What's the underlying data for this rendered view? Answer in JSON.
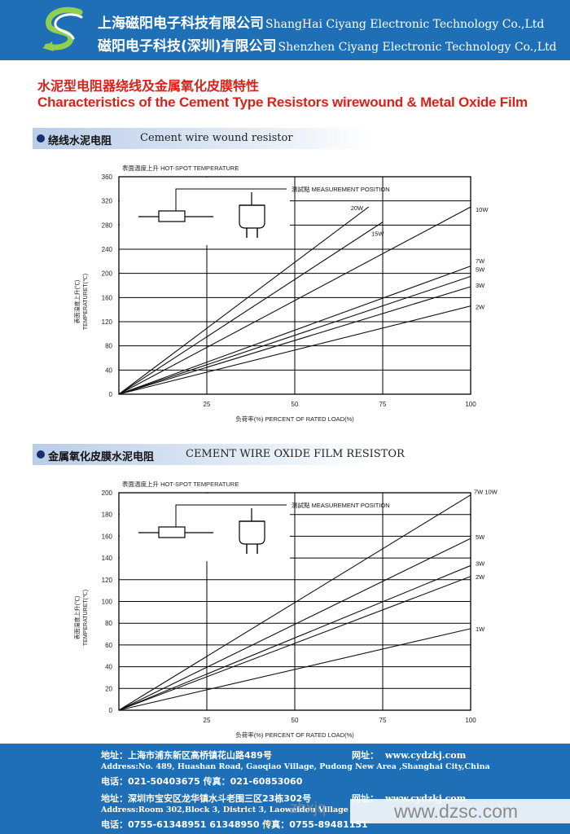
{
  "header": {
    "company_cn_1": "上海磁阳电子科技有限公司",
    "company_en_1": "ShangHai Ciyang Electronic Technology Co.,Ltd",
    "company_cn_2": "磁阳电子科技(深圳)有限公司",
    "company_en_2": "Shenzhen Ciyang Electronic Technology Co.,Ltd",
    "brand_color": "#1f6fb6"
  },
  "title": {
    "cn": "水泥型电阻器绕线及金属氧化皮膜特性",
    "en": "Characteristics of the Cement Type Resistors wirewound & Metal Oxide Film",
    "color": "#d8221a"
  },
  "sections": [
    {
      "cn": "绕线水泥电阻",
      "en": "Cement wire wound resistor"
    },
    {
      "cn": "金属氧化皮膜水泥电阻",
      "en": "CEMENT WIRE OXIDE FILM RESISTOR"
    }
  ],
  "chart_data": [
    {
      "type": "line",
      "title": "表面温度上升 HOT-SPOT TEMPERATURE",
      "ylabel_cn": "表面温度上升(℃)",
      "ylabel_en": "TEMPERATURET(℃)",
      "xlabel": "负荷率(%) PERCENT OF RATED LOAD(%)",
      "xlim": [
        0,
        100
      ],
      "ylim": [
        0,
        360
      ],
      "xticks": [
        "25",
        "50",
        "75",
        "100"
      ],
      "yticks": [
        "0",
        "40",
        "80",
        "120",
        "160",
        "200",
        "240",
        "280",
        "320",
        "360"
      ],
      "annotation": "测試點 MEASUREMENT POSITION",
      "grid": true,
      "series": [
        {
          "name": "20W",
          "x": [
            0,
            71
          ],
          "y": [
            0,
            310
          ]
        },
        {
          "name": "15W",
          "x": [
            0,
            75
          ],
          "y": [
            0,
            285
          ]
        },
        {
          "name": "10W",
          "x": [
            0,
            100
          ],
          "y": [
            0,
            310
          ]
        },
        {
          "name": "7W",
          "x": [
            0,
            100
          ],
          "y": [
            0,
            212
          ]
        },
        {
          "name": "5W",
          "x": [
            0,
            100
          ],
          "y": [
            0,
            195
          ]
        },
        {
          "name": "3W",
          "x": [
            0,
            100
          ],
          "y": [
            0,
            178
          ]
        },
        {
          "name": "2W",
          "x": [
            0,
            100
          ],
          "y": [
            0,
            146
          ]
        }
      ]
    },
    {
      "type": "line",
      "title": "表面温度上升 HOT-SPOT TEMPERATURE",
      "ylabel_cn": "表面温度上升(℃)",
      "ylabel_en": "TEMPERATURET(℃)",
      "xlabel": "负荷率(%) PERCENT OF RATED LOAD(%)",
      "xlim": [
        0,
        100
      ],
      "ylim": [
        0,
        200
      ],
      "xticks": [
        "25",
        "50",
        "75",
        "100"
      ],
      "yticks": [
        "0",
        "20",
        "40",
        "60",
        "80",
        "100",
        "120",
        "140",
        "160",
        "180",
        "200"
      ],
      "annotation": "测試點 MEASUREMENT POSITION",
      "grid": true,
      "series": [
        {
          "name": "7W 10W",
          "x": [
            0,
            100
          ],
          "y": [
            0,
            198
          ]
        },
        {
          "name": "5W",
          "x": [
            0,
            100
          ],
          "y": [
            0,
            158
          ]
        },
        {
          "name": "3W",
          "x": [
            0,
            100
          ],
          "y": [
            0,
            133
          ]
        },
        {
          "name": "2W",
          "x": [
            0,
            100
          ],
          "y": [
            0,
            123
          ]
        },
        {
          "name": "1W",
          "x": [
            0,
            100
          ],
          "y": [
            0,
            75
          ]
        }
      ]
    }
  ],
  "footer": {
    "addr_sh_cn": "地址：上海市浦东新区高桥镇花山路489号",
    "web_label": "网址：",
    "web_url": "www.cydzkj.com",
    "addr_sh_en": "Address:No. 489, Huashan Road, Gaoqiao Village, Pudong New Area ,Shanghai City,China",
    "tel_sh": "电话：021-50403675  传真：021-60853060",
    "addr_sz_cn": "地址：深圳市宝安区龙华镇水斗老围三区23栋302号",
    "web_label_2": "网址：",
    "web_url_2": "www.cydzkj.com",
    "addr_sz_en": "Address:Room 302,Block 3, District 3, Laoweidou Village",
    "tel_sz": "电话：0755-61348951 61348950 传真：0755-89481151",
    "watermark": "www.dzsc.com",
    "watermark_faint": "zhxjq"
  }
}
